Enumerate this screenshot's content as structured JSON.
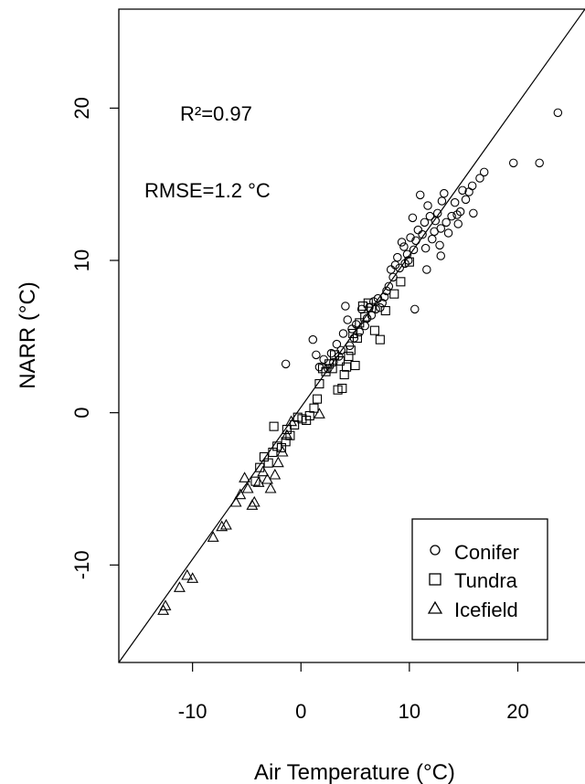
{
  "chart_data": {
    "type": "scatter",
    "xlabel": "Air Temperature (°C)",
    "ylabel": "NARR (°C)",
    "xlim": [
      -16.8,
      26.2
    ],
    "ylim": [
      -16.4,
      26.5
    ],
    "x_ticks": [
      -10,
      0,
      10,
      20
    ],
    "y_ticks": [
      -10,
      0,
      10,
      20
    ],
    "annotations": [
      "R²=0.97",
      "RMSE=1.2 °C"
    ],
    "legend_position": "bottom-right",
    "reference_line": {
      "x": [
        -16.8,
        26.2
      ],
      "y": [
        -16.4,
        26.5
      ]
    },
    "series": [
      {
        "name": "Conifer",
        "marker": "circle",
        "points": [
          [
            23.7,
            19.7
          ],
          [
            22.0,
            16.4
          ],
          [
            19.6,
            16.4
          ],
          [
            16.9,
            15.8
          ],
          [
            16.5,
            15.4
          ],
          [
            15.8,
            14.9
          ],
          [
            15.5,
            14.5
          ],
          [
            15.2,
            14.0
          ],
          [
            14.9,
            14.6
          ],
          [
            14.7,
            13.2
          ],
          [
            14.5,
            12.4
          ],
          [
            14.2,
            13.8
          ],
          [
            13.9,
            12.9
          ],
          [
            13.6,
            11.8
          ],
          [
            13.4,
            12.5
          ],
          [
            13.2,
            14.4
          ],
          [
            13.0,
            13.9
          ],
          [
            12.9,
            12.1
          ],
          [
            12.8,
            11.0
          ],
          [
            12.6,
            13.1
          ],
          [
            12.4,
            12.6
          ],
          [
            12.3,
            11.9
          ],
          [
            12.1,
            11.4
          ],
          [
            11.9,
            12.9
          ],
          [
            11.7,
            13.6
          ],
          [
            11.5,
            10.8
          ],
          [
            11.4,
            12.5
          ],
          [
            11.2,
            11.7
          ],
          [
            11.0,
            14.3
          ],
          [
            10.8,
            12.0
          ],
          [
            10.6,
            11.3
          ],
          [
            10.4,
            10.7
          ],
          [
            10.3,
            12.8
          ],
          [
            10.1,
            11.5
          ],
          [
            9.9,
            10.0
          ],
          [
            9.8,
            10.4
          ],
          [
            9.6,
            9.8
          ],
          [
            9.5,
            10.9
          ],
          [
            9.3,
            11.2
          ],
          [
            9.1,
            9.5
          ],
          [
            8.9,
            10.2
          ],
          [
            8.7,
            9.7
          ],
          [
            8.5,
            8.9
          ],
          [
            8.3,
            9.4
          ],
          [
            8.1,
            8.3
          ],
          [
            7.9,
            8.0
          ],
          [
            7.7,
            7.6
          ],
          [
            7.5,
            7.2
          ],
          [
            7.3,
            6.9
          ],
          [
            7.1,
            7.5
          ],
          [
            6.9,
            6.8
          ],
          [
            6.7,
            7.3
          ],
          [
            6.5,
            6.4
          ],
          [
            6.3,
            6.9
          ],
          [
            6.1,
            6.2
          ],
          [
            5.9,
            5.7
          ],
          [
            5.6,
            6.8
          ],
          [
            5.4,
            5.3
          ],
          [
            5.1,
            5.8
          ],
          [
            4.9,
            4.9
          ],
          [
            4.7,
            5.5
          ],
          [
            4.5,
            4.4
          ],
          [
            4.3,
            6.1
          ],
          [
            4.1,
            7.0
          ],
          [
            3.9,
            5.2
          ],
          [
            3.7,
            4.1
          ],
          [
            3.5,
            3.7
          ],
          [
            3.3,
            4.5
          ],
          [
            3.0,
            3.3
          ],
          [
            2.8,
            3.9
          ],
          [
            2.5,
            2.9
          ],
          [
            2.1,
            3.5
          ],
          [
            1.7,
            3.0
          ],
          [
            1.4,
            3.8
          ],
          [
            1.1,
            4.8
          ],
          [
            -1.4,
            3.2
          ],
          [
            10.5,
            6.8
          ],
          [
            12.9,
            10.3
          ],
          [
            11.6,
            9.4
          ],
          [
            14.4,
            13.0
          ],
          [
            15.9,
            13.1
          ]
        ]
      },
      {
        "name": "Tundra",
        "marker": "square",
        "points": [
          [
            7.3,
            4.8
          ],
          [
            6.8,
            5.4
          ],
          [
            6.5,
            6.9
          ],
          [
            6.2,
            7.2
          ],
          [
            5.9,
            6.3
          ],
          [
            5.7,
            7.0
          ],
          [
            5.4,
            5.9
          ],
          [
            5.2,
            4.9
          ],
          [
            5.0,
            3.1
          ],
          [
            4.8,
            5.2
          ],
          [
            4.6,
            4.1
          ],
          [
            4.4,
            3.7
          ],
          [
            4.2,
            3.0
          ],
          [
            4.0,
            2.5
          ],
          [
            3.8,
            1.6
          ],
          [
            3.6,
            3.4
          ],
          [
            3.4,
            1.5
          ],
          [
            3.1,
            3.8
          ],
          [
            2.9,
            2.9
          ],
          [
            2.6,
            3.2
          ],
          [
            2.3,
            2.7
          ],
          [
            2.0,
            2.9
          ],
          [
            1.7,
            1.9
          ],
          [
            1.5,
            0.9
          ],
          [
            1.2,
            0.3
          ],
          [
            0.8,
            -0.2
          ],
          [
            0.5,
            -0.5
          ],
          [
            0.1,
            -0.4
          ],
          [
            -0.3,
            -0.3
          ],
          [
            -0.6,
            -0.8
          ],
          [
            -1.0,
            -1.5
          ],
          [
            -1.4,
            -1.9
          ],
          [
            -1.8,
            -2.3
          ],
          [
            -2.2,
            -2.2
          ],
          [
            -2.6,
            -2.6
          ],
          [
            -3.0,
            -3.3
          ],
          [
            -3.4,
            -2.9
          ],
          [
            -3.8,
            -3.6
          ],
          [
            -4.2,
            -4.5
          ],
          [
            -2.5,
            -0.9
          ],
          [
            -1.3,
            -1.1
          ],
          [
            7.8,
            6.7
          ],
          [
            8.6,
            7.8
          ],
          [
            9.2,
            8.6
          ],
          [
            10.0,
            9.9
          ]
        ]
      },
      {
        "name": "Icefield",
        "marker": "triangle",
        "points": [
          [
            -12.7,
            -13.0
          ],
          [
            -12.5,
            -12.7
          ],
          [
            -11.2,
            -11.5
          ],
          [
            -10.5,
            -10.7
          ],
          [
            -10.0,
            -10.9
          ],
          [
            -8.1,
            -8.2
          ],
          [
            -7.3,
            -7.5
          ],
          [
            -6.9,
            -7.4
          ],
          [
            -6.0,
            -5.9
          ],
          [
            -5.6,
            -5.4
          ],
          [
            -5.2,
            -4.3
          ],
          [
            -4.9,
            -5.0
          ],
          [
            -4.5,
            -6.1
          ],
          [
            -4.3,
            -5.9
          ],
          [
            -3.9,
            -4.6
          ],
          [
            -3.5,
            -3.9
          ],
          [
            -3.1,
            -4.4
          ],
          [
            -2.8,
            -5.0
          ],
          [
            -2.4,
            -4.1
          ],
          [
            -2.1,
            -3.3
          ],
          [
            -1.7,
            -2.6
          ],
          [
            -1.3,
            -1.5
          ],
          [
            -0.9,
            -0.6
          ],
          [
            1.7,
            -0.1
          ]
        ]
      }
    ]
  }
}
